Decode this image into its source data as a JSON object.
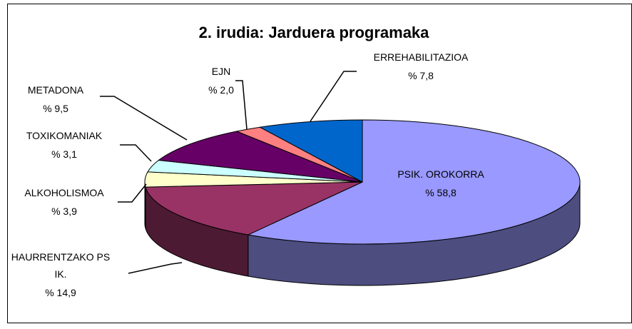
{
  "chart_data": {
    "type": "pie",
    "title": "2. irudia: Jarduera programaka",
    "categories": [
      "PSIK. OROKORRA",
      "HAURRENTZAKO PSIK.",
      "ALKOHOLISMOA",
      "TOXIKOMANIAK",
      "METADONA",
      "EJN",
      "ERREHABILITAZIOA"
    ],
    "values": [
      58.8,
      14.9,
      3.9,
      3.1,
      9.5,
      2.0,
      7.8
    ],
    "value_labels": [
      "% 58,8",
      "% 14,9",
      "% 3,9",
      "% 3,1",
      "% 9,5",
      "% 2,0",
      "% 7,8"
    ],
    "colors": [
      "#9999ff",
      "#993366",
      "#ffffcc",
      "#ccffff",
      "#660066",
      "#ff8080",
      "#0066cc"
    ]
  }
}
